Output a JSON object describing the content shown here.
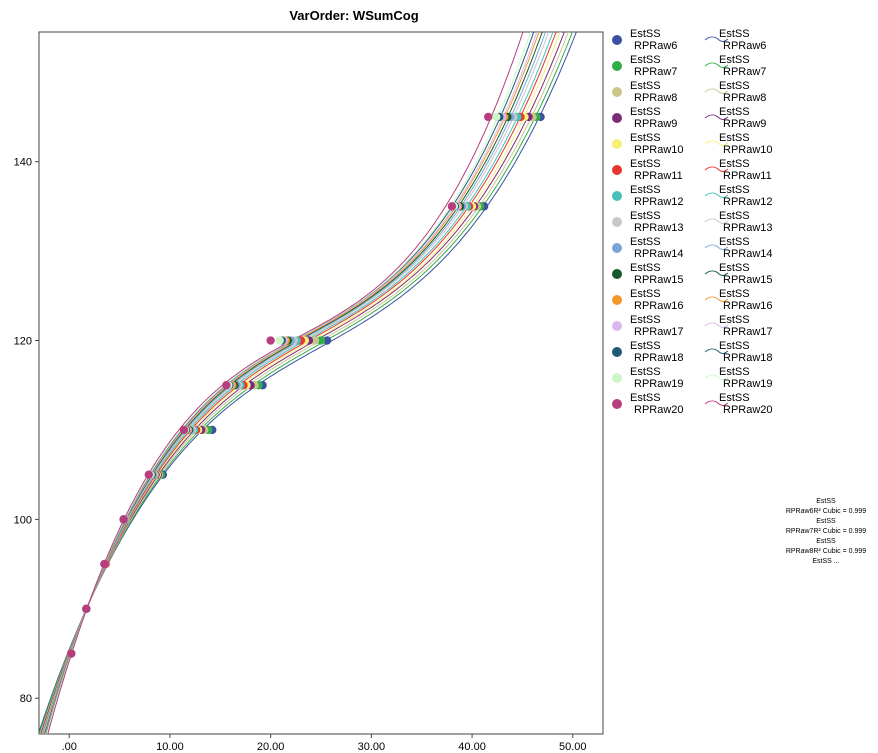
{
  "chart_data": {
    "type": "scatter",
    "title": "VarOrder: WSumCog",
    "xlabel": "",
    "ylabel": "",
    "xlim": [
      -3,
      53
    ],
    "ylim": [
      76,
      154.5
    ],
    "x_ticks": [
      0,
      10,
      20,
      30,
      40,
      50
    ],
    "x_tick_labels": [
      ".00",
      "10.00",
      "20.00",
      "30.00",
      "40.00",
      "50.00"
    ],
    "y_ticks": [
      80,
      100,
      120,
      140
    ],
    "y_tick_labels": [
      "80",
      "100",
      "120",
      "140"
    ],
    "grid": false,
    "legend_position": "right",
    "y_values": [
      85,
      90,
      95,
      100,
      105,
      110,
      115,
      120,
      135,
      145
    ],
    "fit": "cubic",
    "series": [
      {
        "name": "EstSS\nRPRaw6",
        "color": "#3d4fa0",
        "x": [
          0.2,
          1.7,
          3.6,
          5.6,
          9.3,
          14.2,
          19.2,
          25.6,
          41.2,
          46.8
        ]
      },
      {
        "name": "EstSS\nRPRaw7",
        "color": "#2fae4a",
        "x": [
          0.2,
          1.7,
          3.6,
          5.6,
          9.1,
          13.8,
          18.8,
          25.0,
          40.8,
          46.4
        ]
      },
      {
        "name": "EstSS\nRPRaw8",
        "color": "#cbc58c",
        "x": [
          0.2,
          1.7,
          3.6,
          5.6,
          8.9,
          13.4,
          18.4,
          24.4,
          40.5,
          46.0
        ]
      },
      {
        "name": "EstSS\nRPRaw9",
        "color": "#7e2a7c",
        "x": [
          0.2,
          1.7,
          3.6,
          5.5,
          8.8,
          13.1,
          18.0,
          23.8,
          40.2,
          45.6
        ]
      },
      {
        "name": "EstSS\nRPRaw10",
        "color": "#f6f07a",
        "x": [
          0.2,
          1.7,
          3.6,
          5.5,
          8.7,
          12.8,
          17.6,
          23.4,
          40.0,
          45.2
        ]
      },
      {
        "name": "EstSS\nRPRaw11",
        "color": "#e8352e",
        "x": [
          0.2,
          1.7,
          3.6,
          5.5,
          8.6,
          12.6,
          17.3,
          23.0,
          39.7,
          44.8
        ]
      },
      {
        "name": "EstSS\nRPRaw12",
        "color": "#48bfbd",
        "x": [
          0.2,
          1.7,
          3.5,
          5.5,
          8.5,
          12.4,
          17.0,
          22.6,
          39.5,
          44.5
        ]
      },
      {
        "name": "EstSS\nRPRaw13",
        "color": "#c8c8c8",
        "x": [
          0.2,
          1.7,
          3.5,
          5.5,
          8.4,
          12.2,
          16.8,
          22.3,
          39.2,
          44.1
        ]
      },
      {
        "name": "EstSS\nRPRaw14",
        "color": "#79a7d3",
        "x": [
          0.2,
          1.7,
          3.5,
          5.5,
          8.3,
          12.0,
          16.6,
          22.0,
          39.0,
          43.8
        ]
      },
      {
        "name": "EstSS\nRPRaw15",
        "color": "#155a2c",
        "x": [
          0.2,
          1.7,
          3.5,
          5.4,
          8.2,
          11.9,
          16.4,
          21.7,
          38.8,
          43.5
        ]
      },
      {
        "name": "EstSS\nRPRaw16",
        "color": "#f4982a",
        "x": [
          0.2,
          1.7,
          3.5,
          5.4,
          8.1,
          11.8,
          16.2,
          21.5,
          38.6,
          43.2
        ]
      },
      {
        "name": "EstSS\nRPRaw17",
        "color": "#d9b8ef",
        "x": [
          0.2,
          1.7,
          3.5,
          5.4,
          8.1,
          11.7,
          16.0,
          21.3,
          38.5,
          43.0
        ]
      },
      {
        "name": "EstSS\nRPRaw18",
        "color": "#1e5c75",
        "x": [
          0.2,
          1.7,
          3.5,
          5.4,
          8.0,
          11.6,
          15.9,
          21.1,
          38.3,
          42.7
        ]
      },
      {
        "name": "EstSS\nRPRaw19",
        "color": "#cdf6c8",
        "x": [
          0.2,
          1.7,
          3.5,
          5.4,
          8.0,
          11.5,
          15.8,
          20.9,
          38.2,
          42.4
        ]
      },
      {
        "name": "EstSS\nRPRaw20",
        "color": "#b83d7e",
        "x": [
          0.2,
          1.7,
          3.5,
          5.4,
          7.9,
          11.4,
          15.6,
          20.0,
          38.0,
          41.6
        ]
      }
    ],
    "fit_labels": [
      "EstSS",
      "RPRaw6R² Cubic = 0.999",
      "EstSS",
      "RPRaw7R² Cubic = 0.999",
      "EstSS",
      "RPRaw8R² Cubic = 0.999",
      "EstSS ..."
    ]
  }
}
